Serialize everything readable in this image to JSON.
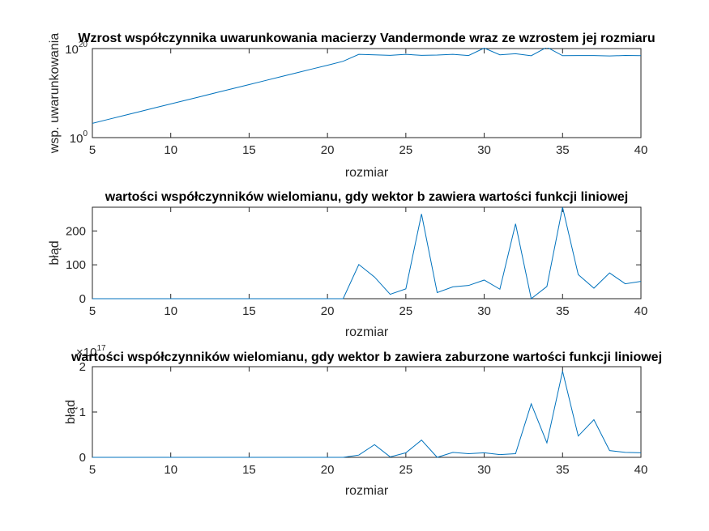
{
  "chart_data": [
    {
      "type": "line",
      "title": "Wzrost współczynnika uwarunkowania macierzy Vandermonde wraz ze wzrostem jej rozmiaru",
      "xlabel": "rozmiar",
      "ylabel": "wsp. uwarunkowania",
      "yscale": "log",
      "xlim": [
        5,
        40
      ],
      "ylim": [
        1,
        1e+20
      ],
      "xticks": [
        "5",
        "10",
        "15",
        "20",
        "25",
        "30",
        "35",
        "40"
      ],
      "yticks": [
        {
          "base": "10",
          "exp": "0"
        },
        {
          "base": "10",
          "exp": "20"
        }
      ],
      "color": "#0072BD",
      "x": [
        5,
        6,
        7,
        8,
        9,
        10,
        11,
        12,
        13,
        14,
        15,
        16,
        17,
        18,
        19,
        20,
        21,
        22,
        23,
        24,
        25,
        26,
        27,
        28,
        29,
        30,
        31,
        32,
        33,
        34,
        35,
        36,
        37,
        38,
        39,
        40
      ],
      "y": [
        1600.0,
        12000.0,
        90000.0,
        660000.0,
        5000000.0,
        37000000.0,
        270000000.0,
        2000000000.0,
        15000000000.0,
        110000000000.0,
        820000000000.0,
        6100000000000.0,
        45000000000000.0,
        330000000000000.0,
        2500000000000000.0,
        1.8e+16,
        1.4e+17,
        5e+18,
        4e+18,
        3e+18,
        5e+18,
        3e+18,
        3.5e+18,
        5e+18,
        2.7e+18,
        1.3e+20,
        4e+18,
        7e+18,
        2.5e+18,
        2e+20,
        2.5e+18,
        2.7e+18,
        2.7e+18,
        2.2e+18,
        2.8e+18,
        2.5e+18
      ]
    },
    {
      "type": "line",
      "title": "wartości współczynników wielomianu, gdy wektor b zawiera wartości funkcji liniowej",
      "xlabel": "rozmiar",
      "ylabel": "błąd",
      "xlim": [
        5,
        40
      ],
      "ylim": [
        0,
        270
      ],
      "xticks": [
        "5",
        "10",
        "15",
        "20",
        "25",
        "30",
        "35",
        "40"
      ],
      "yticks": [
        "0",
        "100",
        "200"
      ],
      "color": "#0072BD",
      "x": [
        5,
        6,
        7,
        8,
        9,
        10,
        11,
        12,
        13,
        14,
        15,
        16,
        17,
        18,
        19,
        20,
        21,
        22,
        23,
        24,
        25,
        26,
        27,
        28,
        29,
        30,
        31,
        32,
        33,
        34,
        35,
        36,
        37,
        38,
        39,
        40
      ],
      "y": [
        0,
        0,
        0,
        0,
        0,
        0,
        0,
        0,
        0,
        0,
        0,
        0,
        0,
        0,
        0,
        0,
        0,
        101,
        64,
        13,
        29,
        250,
        18,
        35,
        39,
        55,
        28,
        221,
        0,
        36,
        270,
        71,
        31,
        76,
        44,
        51
      ]
    },
    {
      "type": "line",
      "title": "wartości współczynników wielomianu, gdy wektor b zawiera zaburzone wartości funkcji liniowej",
      "xlabel": "rozmiar",
      "ylabel": "błąd",
      "multiplier": {
        "base": "10",
        "exp": "17"
      },
      "xlim": [
        5,
        40
      ],
      "ylim": [
        0,
        2
      ],
      "xticks": [
        "5",
        "10",
        "15",
        "20",
        "25",
        "30",
        "35",
        "40"
      ],
      "yticks": [
        "0",
        "1",
        "2"
      ],
      "color": "#0072BD",
      "x": [
        5,
        6,
        7,
        8,
        9,
        10,
        11,
        12,
        13,
        14,
        15,
        16,
        17,
        18,
        19,
        20,
        21,
        22,
        23,
        24,
        25,
        26,
        27,
        28,
        29,
        30,
        31,
        32,
        33,
        34,
        35,
        36,
        37,
        38,
        39,
        40
      ],
      "y": [
        0,
        0,
        0,
        0,
        0,
        0,
        0,
        0,
        0,
        0,
        0,
        0,
        0,
        0,
        0,
        0,
        0,
        0.05,
        0.28,
        0.01,
        0.1,
        0.38,
        0,
        0.11,
        0.08,
        0.1,
        0.06,
        0.08,
        1.18,
        0.32,
        1.9,
        0.47,
        0.83,
        0.15,
        0.11,
        0.1
      ]
    }
  ]
}
